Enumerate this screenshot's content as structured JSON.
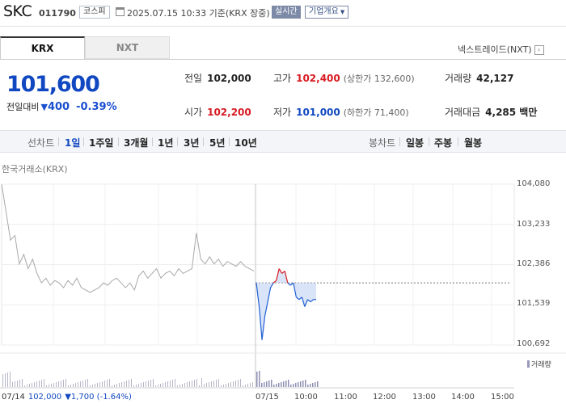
{
  "header": {
    "name": "SKC",
    "code": "011790",
    "market": "코스피",
    "datetime": "2025.07.15 10:33 기준(KRX 장중)",
    "realtime": "실시간",
    "company_btn": "기업개요"
  },
  "tabs": [
    {
      "label": "KRX",
      "active": true
    },
    {
      "label": "NXT",
      "active": false
    }
  ],
  "nxt_link": "넥스트레이드(NXT)",
  "price": {
    "current": "101,600",
    "change_label": "전일대비",
    "change_arrow": "▼",
    "change": "400",
    "percent": "-0.39%"
  },
  "stats": {
    "prev_close": {
      "label": "전일",
      "value": "102,000"
    },
    "high": {
      "label": "고가",
      "value": "102,400",
      "sub": "(상한가 132,600)"
    },
    "volume": {
      "label": "거래량",
      "value": "42,127"
    },
    "open": {
      "label": "시가",
      "value": "102,200"
    },
    "low": {
      "label": "저가",
      "value": "101,000",
      "sub": "(하한가 71,400)"
    },
    "amount": {
      "label": "거래대금",
      "value": "4,285 백만"
    }
  },
  "period_bar": {
    "line_label": "선차트",
    "line_periods": [
      "1일",
      "1주일",
      "3개월",
      "1년",
      "3년",
      "5년",
      "10년"
    ],
    "active_period": "1일",
    "candle_label": "봉차트",
    "candle_periods": [
      "일봉",
      "주봉",
      "월봉"
    ]
  },
  "exchange_label": "한국거래소(KRX)",
  "chart_data": {
    "type": "line",
    "y_ticks": [
      "104,080",
      "103,233",
      "102,386",
      "101,539",
      "100,692"
    ],
    "ylim": [
      100692,
      104080
    ],
    "x_ticks": [
      "07/14",
      "07/15",
      "10:00",
      "11:00",
      "12:00",
      "13:00",
      "14:00",
      "15:00"
    ],
    "reference_price": 102000,
    "series": [
      {
        "values": [
          104080,
          103500,
          102900,
          103000,
          102400,
          102600,
          102300,
          102500,
          102200,
          102000,
          102100,
          101950,
          102050,
          102000,
          101900,
          102050,
          101950,
          102100,
          101900,
          101850,
          101800,
          101850,
          101900,
          102000,
          101950,
          102050,
          102100,
          102000,
          101900,
          102000,
          101850,
          102150,
          102250,
          102100,
          102200,
          102300,
          102100,
          102200,
          102250,
          102150,
          102300,
          102200,
          102250,
          102300,
          103050,
          102500,
          102400,
          102550,
          102400,
          102500,
          102350,
          102450,
          102400,
          102350,
          102450,
          102350,
          102300,
          102250
        ]
      },
      {
        "values": [
          102000,
          101500,
          100800,
          101300,
          101600,
          101900,
          102000,
          102050,
          102300,
          102200,
          102250,
          102000,
          101950,
          102000,
          101700,
          101650,
          101700,
          101500,
          101650,
          101600,
          101650,
          101650
        ]
      }
    ],
    "volume_legend": "거래량",
    "prev_day_info": {
      "date": "07/14",
      "price": "102,000",
      "change": "▼1,700 (-1.64%)"
    }
  },
  "colors": {
    "accent_blue": "#1148c2",
    "accent_red": "#d71a21",
    "prev_line": "#a8a8a8",
    "today_line": "#1f5fd3",
    "fill_blue": "#c9d9f6"
  }
}
